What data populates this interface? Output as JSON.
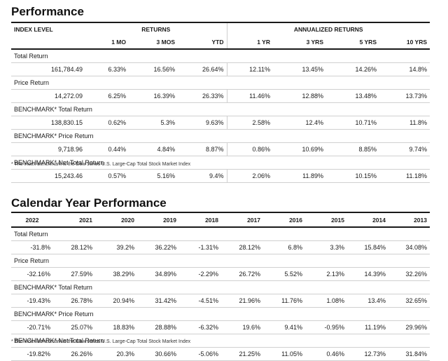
{
  "performance": {
    "title": "Performance",
    "group_headers": {
      "index_level": "INDEX LEVEL",
      "returns": "RETURNS",
      "annualized": "ANNUALIZED RETURNS"
    },
    "columns": [
      "1 MO",
      "3 MOS",
      "YTD",
      "1 YR",
      "3 YRS",
      "5 YRS",
      "10 YRS"
    ],
    "rows": [
      {
        "label": "Total Return",
        "index_level": "161,784.49",
        "values": [
          "6.33%",
          "16.56%",
          "26.64%",
          "12.11%",
          "13.45%",
          "14.26%",
          "14.8%"
        ]
      },
      {
        "label": "Price Return",
        "index_level": "14,272.09",
        "values": [
          "6.25%",
          "16.39%",
          "26.33%",
          "11.46%",
          "12.88%",
          "13.48%",
          "13.73%"
        ]
      },
      {
        "label": "BENCHMARK* Total Return",
        "index_level": "138,830.15",
        "values": [
          "0.62%",
          "5.3%",
          "9.63%",
          "2.58%",
          "12.4%",
          "10.71%",
          "11.8%"
        ]
      },
      {
        "label": "BENCHMARK* Price Return",
        "index_level": "9,718.96",
        "values": [
          "0.44%",
          "4.84%",
          "8.87%",
          "0.86%",
          "10.69%",
          "8.85%",
          "9.74%"
        ]
      },
      {
        "label": "BENCHMARK* Net Total Return",
        "index_level": "15,243.46",
        "values": [
          "0.57%",
          "5.16%",
          "9.4%",
          "2.06%",
          "11.89%",
          "10.15%",
          "11.18%"
        ]
      }
    ],
    "footnote": "* The index benchmark is the  Dow Jones U.S. Large-Cap Total Stock Market Index"
  },
  "calendar": {
    "title": "Calendar Year Performance",
    "years": [
      "2022",
      "2021",
      "2020",
      "2019",
      "2018",
      "2017",
      "2016",
      "2015",
      "2014",
      "2013"
    ],
    "rows": [
      {
        "label": "Total Return",
        "values": [
          "-31.8%",
          "28.12%",
          "39.2%",
          "36.22%",
          "-1.31%",
          "28.12%",
          "6.8%",
          "3.3%",
          "15.84%",
          "34.08%"
        ]
      },
      {
        "label": "Price Return",
        "values": [
          "-32.16%",
          "27.59%",
          "38.29%",
          "34.89%",
          "-2.29%",
          "26.72%",
          "5.52%",
          "2.13%",
          "14.39%",
          "32.26%"
        ]
      },
      {
        "label": "BENCHMARK* Total Return",
        "values": [
          "-19.43%",
          "26.78%",
          "20.94%",
          "31.42%",
          "-4.51%",
          "21.96%",
          "11.76%",
          "1.08%",
          "13.4%",
          "32.65%"
        ]
      },
      {
        "label": "BENCHMARK* Price Return",
        "values": [
          "-20.71%",
          "25.07%",
          "18.83%",
          "28.88%",
          "-6.32%",
          "19.6%",
          "9.41%",
          "-0.95%",
          "11.19%",
          "29.96%"
        ]
      },
      {
        "label": "BENCHMARK* Net Total Return",
        "values": [
          "-19.82%",
          "26.26%",
          "20.3%",
          "30.66%",
          "-5.06%",
          "21.25%",
          "11.05%",
          "0.46%",
          "12.73%",
          "31.84%"
        ]
      }
    ],
    "footnote": "* The index benchmark is the  Dow Jones U.S. Large-Cap Total Stock Market Index"
  }
}
